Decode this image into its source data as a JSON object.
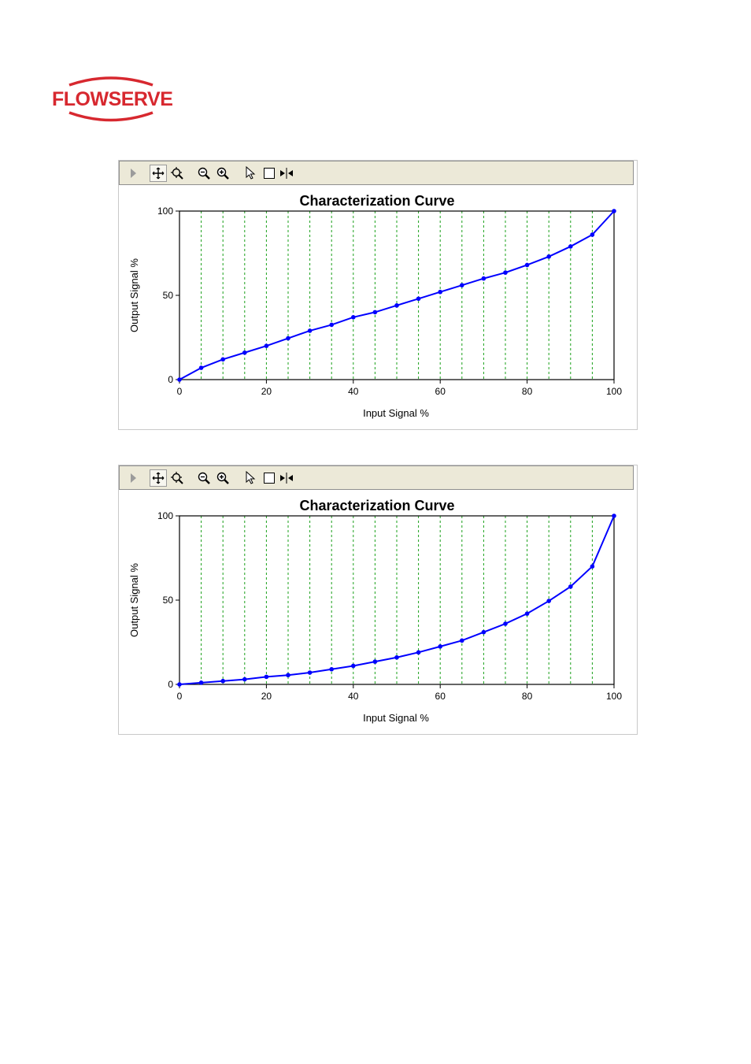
{
  "logo": {
    "text": "FLOWSERVE",
    "color": "#d7282f"
  },
  "toolbar": {
    "icons": [
      "expand-arrow-icon",
      "pan-icon",
      "zoom-fit-icon",
      "zoom-out-icon",
      "zoom-in-icon",
      "pointer-icon",
      "select-box-icon",
      "cursor-split-icon"
    ]
  },
  "charts": [
    {
      "title": "Characterization Curve",
      "xlabel": "Input Signal %",
      "ylabel": "Output Signal %",
      "xticks": [
        "0",
        "20",
        "40",
        "60",
        "80",
        "100"
      ],
      "yticks": [
        "0",
        "50",
        "100"
      ]
    },
    {
      "title": "Characterization Curve",
      "xlabel": "Input Signal %",
      "ylabel": "Output Signal %",
      "xticks": [
        "0",
        "20",
        "40",
        "60",
        "80",
        "100"
      ],
      "yticks": [
        "0",
        "50",
        "100"
      ]
    }
  ],
  "chart_data": [
    {
      "type": "line",
      "title": "Characterization Curve",
      "xlabel": "Input Signal %",
      "ylabel": "Output Signal %",
      "xlim": [
        0,
        100
      ],
      "ylim": [
        0,
        100
      ],
      "grid": "vertical dashed every 5",
      "series": [
        {
          "color": "#0000ff",
          "x": [
            0,
            5,
            10,
            15,
            20,
            25,
            30,
            35,
            40,
            45,
            50,
            55,
            60,
            65,
            70,
            75,
            80,
            85,
            90,
            95,
            100
          ],
          "y": [
            0,
            7,
            12,
            16,
            20,
            24.5,
            29,
            32.5,
            37,
            40,
            44,
            48,
            52,
            56,
            60,
            63.5,
            68,
            73,
            79,
            86,
            100
          ]
        }
      ]
    },
    {
      "type": "line",
      "title": "Characterization Curve",
      "xlabel": "Input Signal %",
      "ylabel": "Output Signal %",
      "xlim": [
        0,
        100
      ],
      "ylim": [
        0,
        100
      ],
      "grid": "vertical dashed every 5",
      "series": [
        {
          "color": "#0000ff",
          "x": [
            0,
            5,
            10,
            15,
            20,
            25,
            30,
            35,
            40,
            45,
            50,
            55,
            60,
            65,
            70,
            75,
            80,
            85,
            90,
            95,
            100
          ],
          "y": [
            0,
            1,
            2,
            3,
            4.5,
            5.5,
            7,
            9,
            11,
            13.5,
            16,
            19,
            22.5,
            26,
            31,
            36,
            42,
            49.5,
            58,
            70,
            100
          ]
        }
      ]
    }
  ]
}
